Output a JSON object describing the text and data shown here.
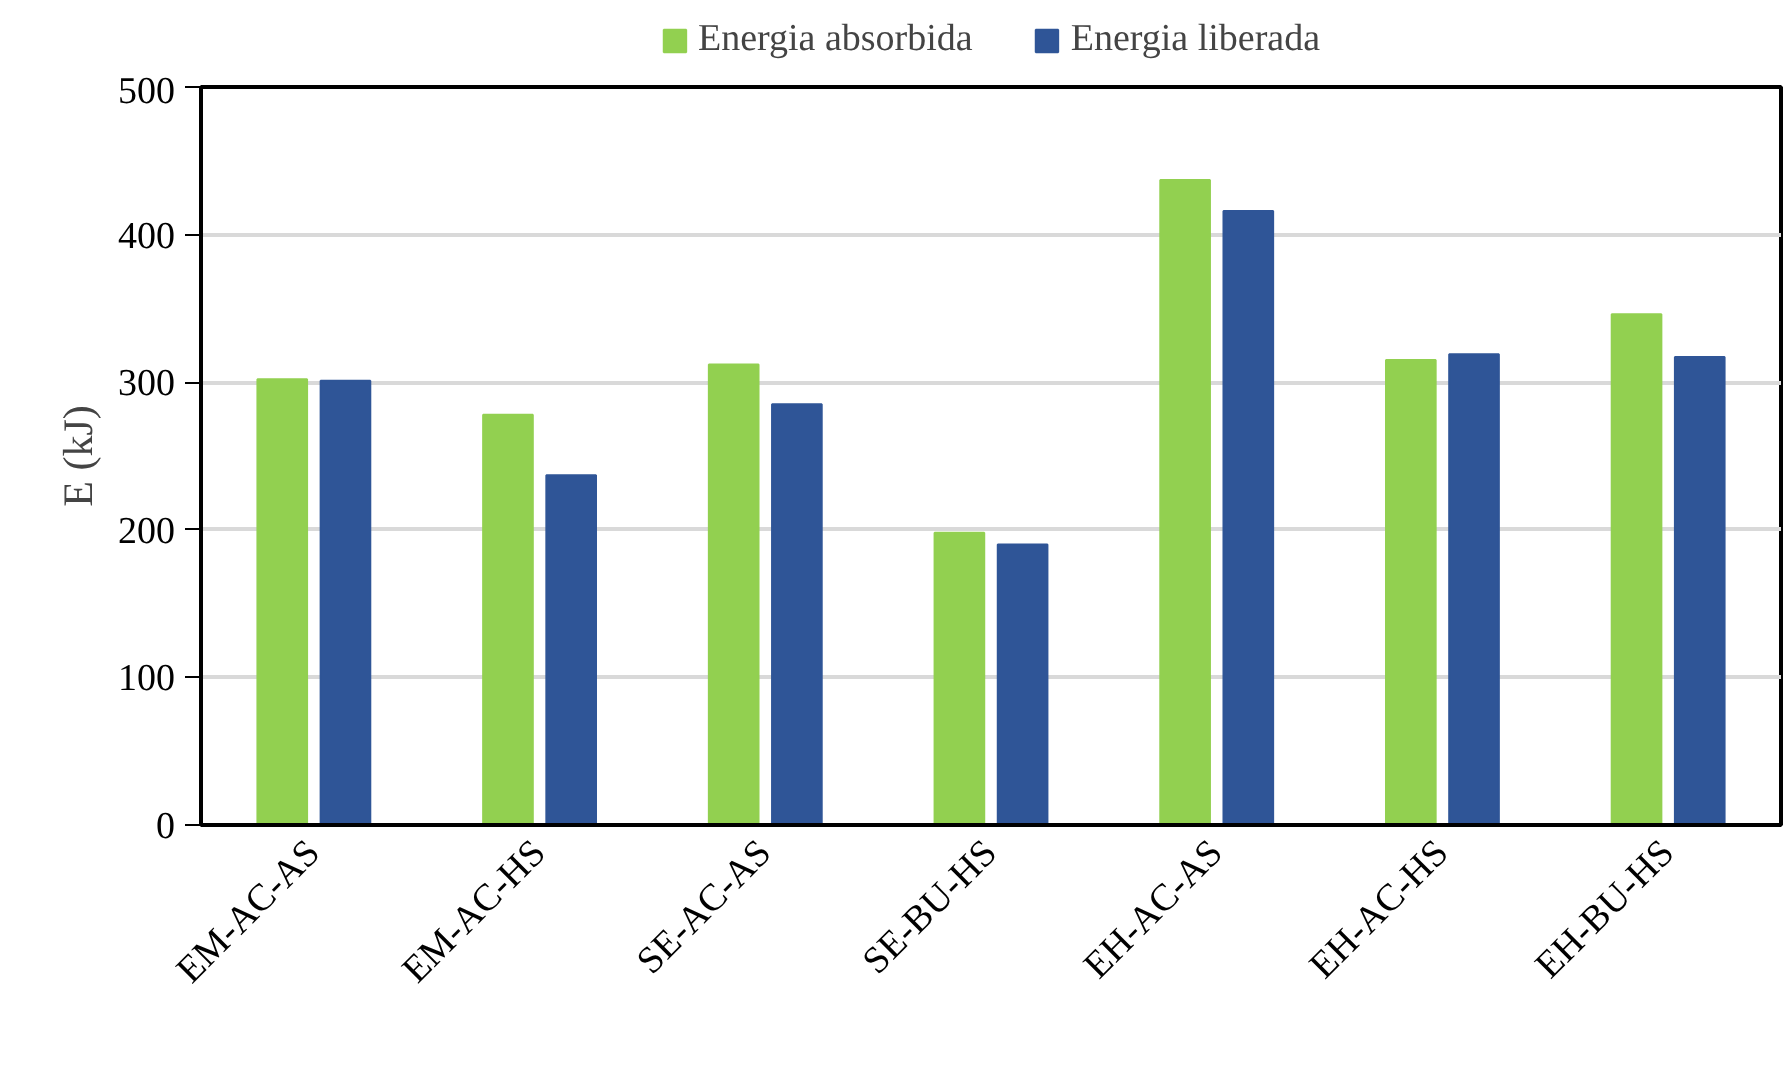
{
  "chart_data": {
    "type": "bar",
    "ylabel": "E (kJ)",
    "categories": [
      "EM-AC-AS",
      "EM-AC-HS",
      "SE-AC-AS",
      "SE-BU-HS",
      "EH-AC-AS",
      "EH-AC-HS",
      "EH-BU-HS"
    ],
    "series": [
      {
        "name": "Energia absorbida",
        "color": "#92d050",
        "values": [
          302,
          278,
          312,
          198,
          437,
          315,
          346
        ]
      },
      {
        "name": "Energia liberada",
        "color": "#2f5597",
        "values": [
          301,
          237,
          285,
          190,
          416,
          319,
          317
        ]
      }
    ],
    "ylim": [
      0,
      500
    ],
    "yticks": [
      0,
      100,
      200,
      300,
      400,
      500
    ],
    "grid": "y",
    "legend": "top"
  }
}
